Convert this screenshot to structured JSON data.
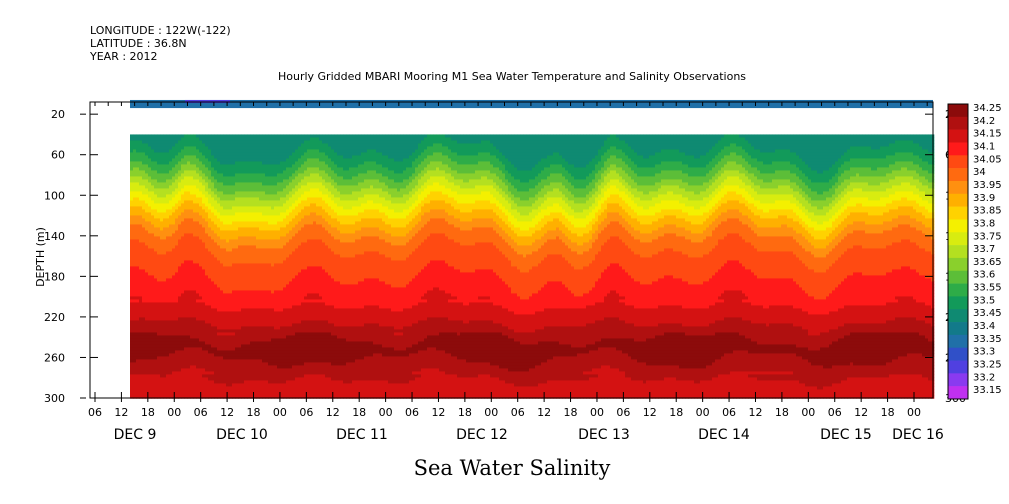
{
  "header": {
    "longitude": "LONGITUDE : 122W(-122)",
    "latitude": "LATITUDE : 36.8N",
    "year": "YEAR : 2012"
  },
  "chart_data": {
    "type": "heatmap",
    "title": "Hourly Gridded MBARI Mooring M1 Sea Water Temperature and Salinity Observations",
    "subtitle": "Sea Water Salinity",
    "ylabel": "DEPTH (m)",
    "ylim": [
      300,
      8
    ],
    "y_ticks": [
      20,
      60,
      100,
      140,
      180,
      220,
      260,
      300
    ],
    "x_hour_labels": [
      "06",
      "12",
      "18",
      "00",
      "06",
      "12",
      "18",
      "00",
      "06",
      "12",
      "18",
      "00",
      "06",
      "12",
      "18",
      "00",
      "06",
      "12",
      "18",
      "00",
      "06",
      "12",
      "18",
      "00",
      "06",
      "12",
      "18",
      "00",
      "06",
      "12",
      "18",
      "00"
    ],
    "x_day_labels": [
      "DEC 9",
      "DEC 10",
      "DEC 11",
      "DEC 12",
      "DEC 13",
      "DEC 14",
      "DEC 15",
      "DEC 16"
    ],
    "colorbar": {
      "levels": [
        "34.25",
        "34.2",
        "34.15",
        "34.1",
        "34.05",
        "34",
        "33.95",
        "33.9",
        "33.85",
        "33.8",
        "33.75",
        "33.7",
        "33.65",
        "33.6",
        "33.55",
        "33.5",
        "33.45",
        "33.4",
        "33.35",
        "33.3",
        "33.25",
        "33.2",
        "33.15"
      ],
      "colors": [
        "#8c0b0b",
        "#b01010",
        "#d41212",
        "#ff1a1a",
        "#ff4a12",
        "#ff6a10",
        "#ff9010",
        "#ffb000",
        "#ffd200",
        "#f4f000",
        "#d8ec10",
        "#b4e020",
        "#8ad02c",
        "#5cbe38",
        "#2eac48",
        "#129a5a",
        "#0f8a72",
        "#127a8a",
        "#2070a8",
        "#3050c8",
        "#5040e0",
        "#8a3af0",
        "#c030f0"
      ]
    },
    "profile": {
      "depths": [
        40,
        60,
        80,
        100,
        120,
        140,
        160,
        180,
        200,
        220,
        240,
        250,
        260,
        280,
        300
      ],
      "salinity": [
        33.4,
        33.47,
        33.58,
        33.72,
        33.85,
        33.96,
        34.02,
        34.05,
        34.08,
        34.13,
        34.2,
        34.23,
        34.2,
        34.15,
        34.12
      ]
    },
    "surface_band": {
      "depth": 10,
      "salinity": 33.3
    },
    "x_start_label": "12 DEC 9"
  }
}
